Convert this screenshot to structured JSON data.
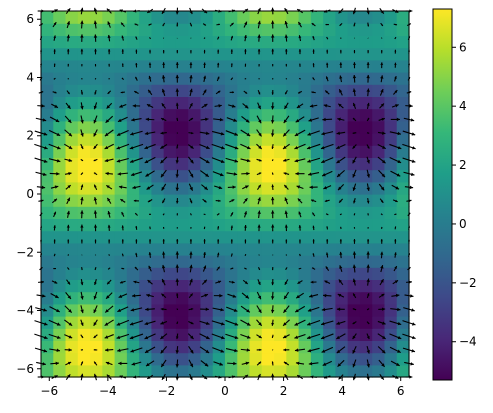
{
  "chart_data": {
    "type": "heatmap",
    "title": "",
    "xlabel": "",
    "ylabel": "",
    "xlim": [
      -6.283,
      6.283
    ],
    "ylim": [
      -6.283,
      6.283
    ],
    "x_ticks": [
      -6,
      -4,
      -2,
      0,
      2,
      4,
      6
    ],
    "x_tick_labels": [
      "−6",
      "−4",
      "−2",
      "0",
      "2",
      "4",
      "6"
    ],
    "y_ticks": [
      -6,
      -4,
      -2,
      0,
      2,
      4,
      6
    ],
    "y_tick_labels": [
      "−6",
      "−4",
      "−2",
      "0",
      "2",
      "4",
      "6"
    ],
    "grid": false,
    "colormap": "viridis",
    "colorbar": {
      "range": [
        -5.3,
        7.3
      ],
      "ticks": [
        -4,
        -2,
        0,
        2,
        4,
        6
      ],
      "tick_labels": [
        "−4",
        "−2",
        "0",
        "2",
        "4",
        "6"
      ]
    },
    "field": {
      "scalar": "1 + 3*sin(x)*(1 + sin(y)) + 2*cos(y)",
      "vectors": "gradient of scalar, shown as quiver arrows on a 28 x 28 grid",
      "min": -5.0,
      "max": 7.0
    },
    "overlay": "quiver"
  },
  "colors": {
    "viridis": [
      "#440154",
      "#482878",
      "#3e4989",
      "#31688e",
      "#26828e",
      "#1f9e89",
      "#35b779",
      "#6ece58",
      "#b5de2b",
      "#fde725"
    ],
    "arrow": "#000000",
    "frame": "#000000"
  }
}
